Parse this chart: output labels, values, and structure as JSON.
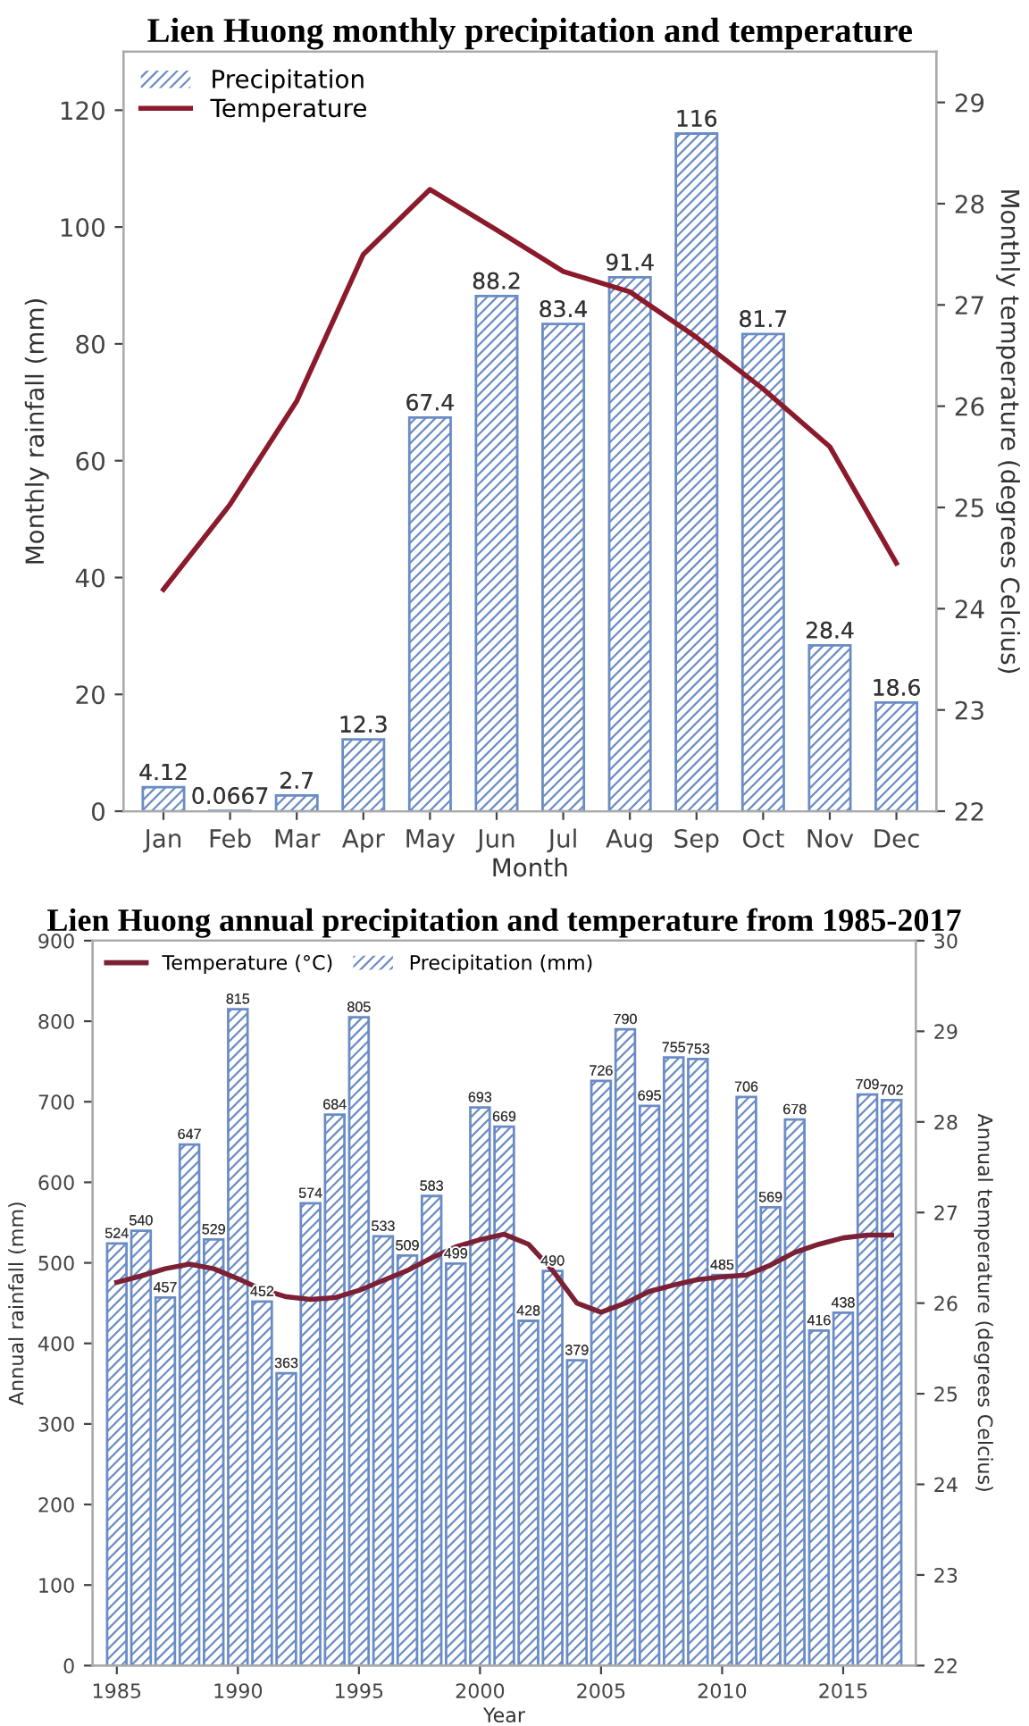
{
  "chart_data": [
    {
      "type": "bar",
      "title": "Lien Huong monthly precipitation and temperature",
      "xlabel": "Month",
      "ylabel": "Monthly rainfall (mm)",
      "y2label": "Monthly temperature (degrees Celcius)",
      "categories": [
        "Jan",
        "Feb",
        "Mar",
        "Apr",
        "May",
        "Jun",
        "Jul",
        "Aug",
        "Sep",
        "Oct",
        "Nov",
        "Dec"
      ],
      "series": [
        {
          "name": "Precipitation",
          "color": "#6a8cc4",
          "values": [
            4.12,
            0.0667,
            2.7,
            12.3,
            67.4,
            88.2,
            83.4,
            91.4,
            116,
            81.7,
            28.4,
            18.6
          ],
          "value_labels": [
            "4.12",
            "0.0667",
            "2.7",
            "12.3",
            "67.4",
            "88.2",
            "83.4",
            "91.4",
            "116",
            "81.7",
            "28.4",
            "18.6"
          ]
        },
        {
          "name": "Temperature",
          "type": "line",
          "axis": "y2",
          "color": "#8b1a2b",
          "values": [
            24.19,
            25.03,
            26.05,
            27.5,
            28.14,
            27.74,
            27.33,
            27.13,
            26.68,
            26.17,
            25.6,
            24.45
          ]
        }
      ],
      "ylim": [
        0,
        130
      ],
      "yticks": [
        0,
        20,
        40,
        60,
        80,
        100,
        120
      ],
      "y2lim": [
        22,
        29.5
      ],
      "y2ticks": [
        22,
        23,
        24,
        25,
        26,
        27,
        28,
        29
      ],
      "grid": false,
      "legend": "top left",
      "marker": "none",
      "line_style": "solid"
    },
    {
      "type": "bar",
      "title": "Lien Huong annual precipitation and temperature from 1985-2017",
      "xlabel": "Year",
      "ylabel": "Annual rainfall (mm)",
      "y2label": "Annual temperature (degrees Celcius)",
      "x": [
        1985,
        1986,
        1987,
        1988,
        1989,
        1990,
        1991,
        1992,
        1993,
        1994,
        1995,
        1996,
        1997,
        1998,
        1999,
        2000,
        2001,
        2002,
        2003,
        2004,
        2005,
        2006,
        2007,
        2008,
        2009,
        2010,
        2011,
        2012,
        2013,
        2014,
        2015,
        2016,
        2017
      ],
      "series": [
        {
          "name": "Temperature (°C)",
          "type": "line",
          "axis": "y2",
          "color": "#7b2035",
          "values": [
            26.23,
            26.3,
            26.38,
            26.43,
            26.38,
            26.27,
            26.15,
            26.07,
            26.04,
            26.06,
            26.14,
            26.25,
            26.36,
            26.5,
            26.62,
            26.7,
            26.76,
            26.65,
            26.36,
            26.0,
            25.9,
            26.0,
            26.13,
            26.2,
            26.26,
            26.29,
            26.31,
            26.42,
            26.56,
            26.65,
            26.72,
            26.75,
            26.75
          ]
        },
        {
          "name": "Precipitation (mm)",
          "color": "#6a8cc4",
          "values": [
            524,
            540,
            457,
            647,
            529,
            815,
            452,
            363,
            574,
            684,
            805,
            533,
            509,
            583,
            499,
            693,
            669,
            428,
            490,
            379,
            726,
            790,
            695,
            755,
            753,
            485,
            706,
            569,
            678,
            416,
            438,
            709,
            702
          ],
          "value_labels": [
            "524",
            "540",
            "457",
            "647",
            "529",
            "815",
            "452",
            "363",
            "574",
            "684",
            "805",
            "533",
            "509",
            "583",
            "499",
            "693",
            "669",
            "428",
            "490",
            "379",
            "726",
            "790",
            "695",
            "755",
            "753",
            "485",
            "706",
            "569",
            "678",
            "416",
            "438",
            "709",
            "702"
          ]
        }
      ],
      "xlim": [
        1984,
        2018
      ],
      "xticks": [
        1985,
        1990,
        1995,
        2000,
        2005,
        2010,
        2015
      ],
      "ylim": [
        0,
        900
      ],
      "yticks": [
        0,
        100,
        200,
        300,
        400,
        500,
        600,
        700,
        800,
        900
      ],
      "y2lim": [
        22,
        30
      ],
      "y2ticks": [
        22,
        23,
        24,
        25,
        26,
        27,
        28,
        29,
        30
      ],
      "grid": false,
      "legend": "top left",
      "marker": "none",
      "line_style": "solid"
    }
  ]
}
